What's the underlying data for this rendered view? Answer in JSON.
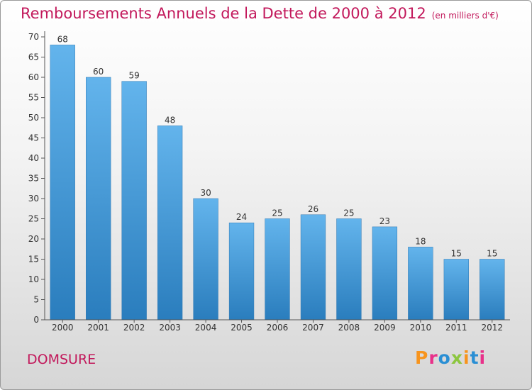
{
  "header": {
    "title": "Remboursements Annuels de la Dette de 2000 à 2012",
    "unit": "(en milliers d'€)"
  },
  "footer": {
    "place": "DOMSURE",
    "logo_text": "Proxiti",
    "logo_colors": [
      "#f7941d",
      "#e8318a",
      "#2a8fd4",
      "#8cc63f",
      "#f7941d",
      "#2a8fd4",
      "#e8318a"
    ]
  },
  "chart_data": {
    "type": "bar",
    "categories": [
      "2000",
      "2001",
      "2002",
      "2003",
      "2004",
      "2005",
      "2006",
      "2007",
      "2008",
      "2009",
      "2010",
      "2011",
      "2012"
    ],
    "values": [
      68,
      60,
      59,
      48,
      30,
      24,
      25,
      26,
      25,
      23,
      18,
      15,
      15
    ],
    "title": "Remboursements Annuels de la Dette de 2000 à 2012",
    "xlabel": "",
    "ylabel": "",
    "ylim": [
      0,
      70
    ],
    "yticks": [
      0,
      5,
      10,
      15,
      20,
      25,
      30,
      35,
      40,
      45,
      50,
      55,
      60,
      65,
      70
    ],
    "grid": false,
    "bar_color_top": "#63b4ec",
    "bar_color_bottom": "#2a7dbd"
  }
}
